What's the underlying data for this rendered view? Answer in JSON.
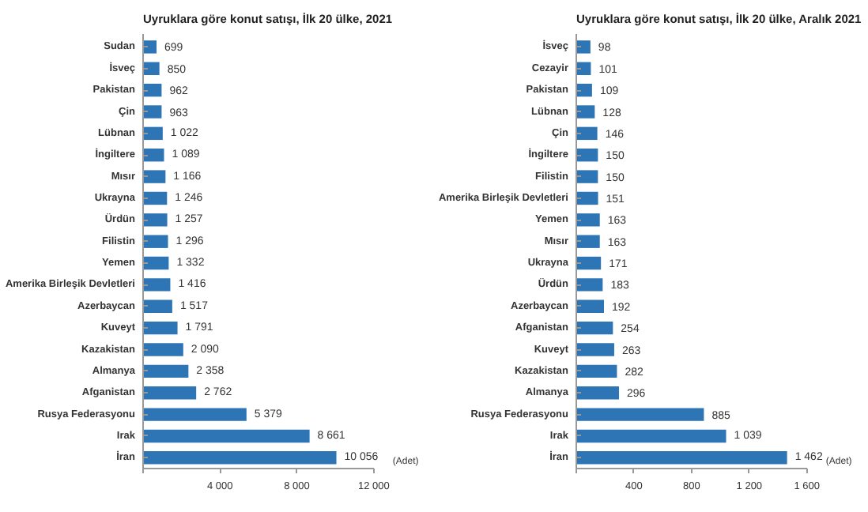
{
  "chart_data": [
    {
      "type": "bar",
      "orientation": "horizontal",
      "title": "Uyruklara göre konut satışı, İlk 20 ülke, 2021",
      "xlabel": "(Adet)",
      "categories": [
        "Sudan",
        "İsveç",
        "Pakistan",
        "Çin",
        "Lübnan",
        "İngiltere",
        "Mısır",
        "Ukrayna",
        "Ürdün",
        "Filistin",
        "Yemen",
        "Amerika Birleşik Devletleri",
        "Azerbaycan",
        "Kuveyt",
        "Kazakistan",
        "Almanya",
        "Afganistan",
        "Rusya Federasyonu",
        "Irak",
        "İran"
      ],
      "series": [
        {
          "color": "#2e75b6",
          "values": [
            699,
            850,
            962,
            963,
            1022,
            1089,
            1166,
            1246,
            1257,
            1296,
            1332,
            1416,
            1517,
            1791,
            2090,
            2358,
            2762,
            5379,
            8661,
            10056
          ],
          "value_labels": [
            "699",
            "850",
            "962",
            "963",
            "1 022",
            "1 089",
            "1 166",
            "1 246",
            "1 257",
            "1 296",
            "1 332",
            "1 416",
            "1 517",
            "1 791",
            "2 090",
            "2 358",
            "2 762",
            "5 379",
            "8 661",
            "10 056"
          ]
        }
      ],
      "xlim": [
        0,
        12000
      ],
      "xticks": [
        {
          "value": 0,
          "label": null
        },
        {
          "value": 4000,
          "label": "4 000"
        },
        {
          "value": 8000,
          "label": "8 000"
        },
        {
          "value": 12000,
          "label": "12 000"
        }
      ],
      "grid": false
    },
    {
      "type": "bar",
      "orientation": "horizontal",
      "title": "Uyruklara göre konut satışı, İlk 20 ülke, Aralık 2021",
      "xlabel": "(Adet)",
      "categories": [
        "İsveç",
        "Cezayir",
        "Pakistan",
        "Lübnan",
        "Çin",
        "İngiltere",
        "Filistin",
        "Amerika Birleşik Devletleri",
        "Yemen",
        "Mısır",
        "Ukrayna",
        "Ürdün",
        "Azerbaycan",
        "Afganistan",
        "Kuveyt",
        "Kazakistan",
        "Almanya",
        "Rusya Federasyonu",
        "Irak",
        "İran"
      ],
      "series": [
        {
          "color": "#2e75b6",
          "values": [
            98,
            101,
            109,
            128,
            146,
            150,
            150,
            151,
            163,
            163,
            171,
            183,
            192,
            254,
            263,
            282,
            296,
            885,
            1039,
            1462
          ],
          "value_labels": [
            "98",
            "101",
            "109",
            "128",
            "146",
            "150",
            "150",
            "151",
            "163",
            "163",
            "171",
            "183",
            "192",
            "254",
            "263",
            "282",
            "296",
            "885",
            "1 039",
            "1 462"
          ]
        }
      ],
      "xlim": [
        0,
        1600
      ],
      "xticks": [
        {
          "value": 0,
          "label": null
        },
        400,
        800,
        {
          "value": 1200,
          "label": "1 200"
        },
        {
          "value": 1600,
          "label": "1 600"
        }
      ],
      "grid": false
    }
  ]
}
